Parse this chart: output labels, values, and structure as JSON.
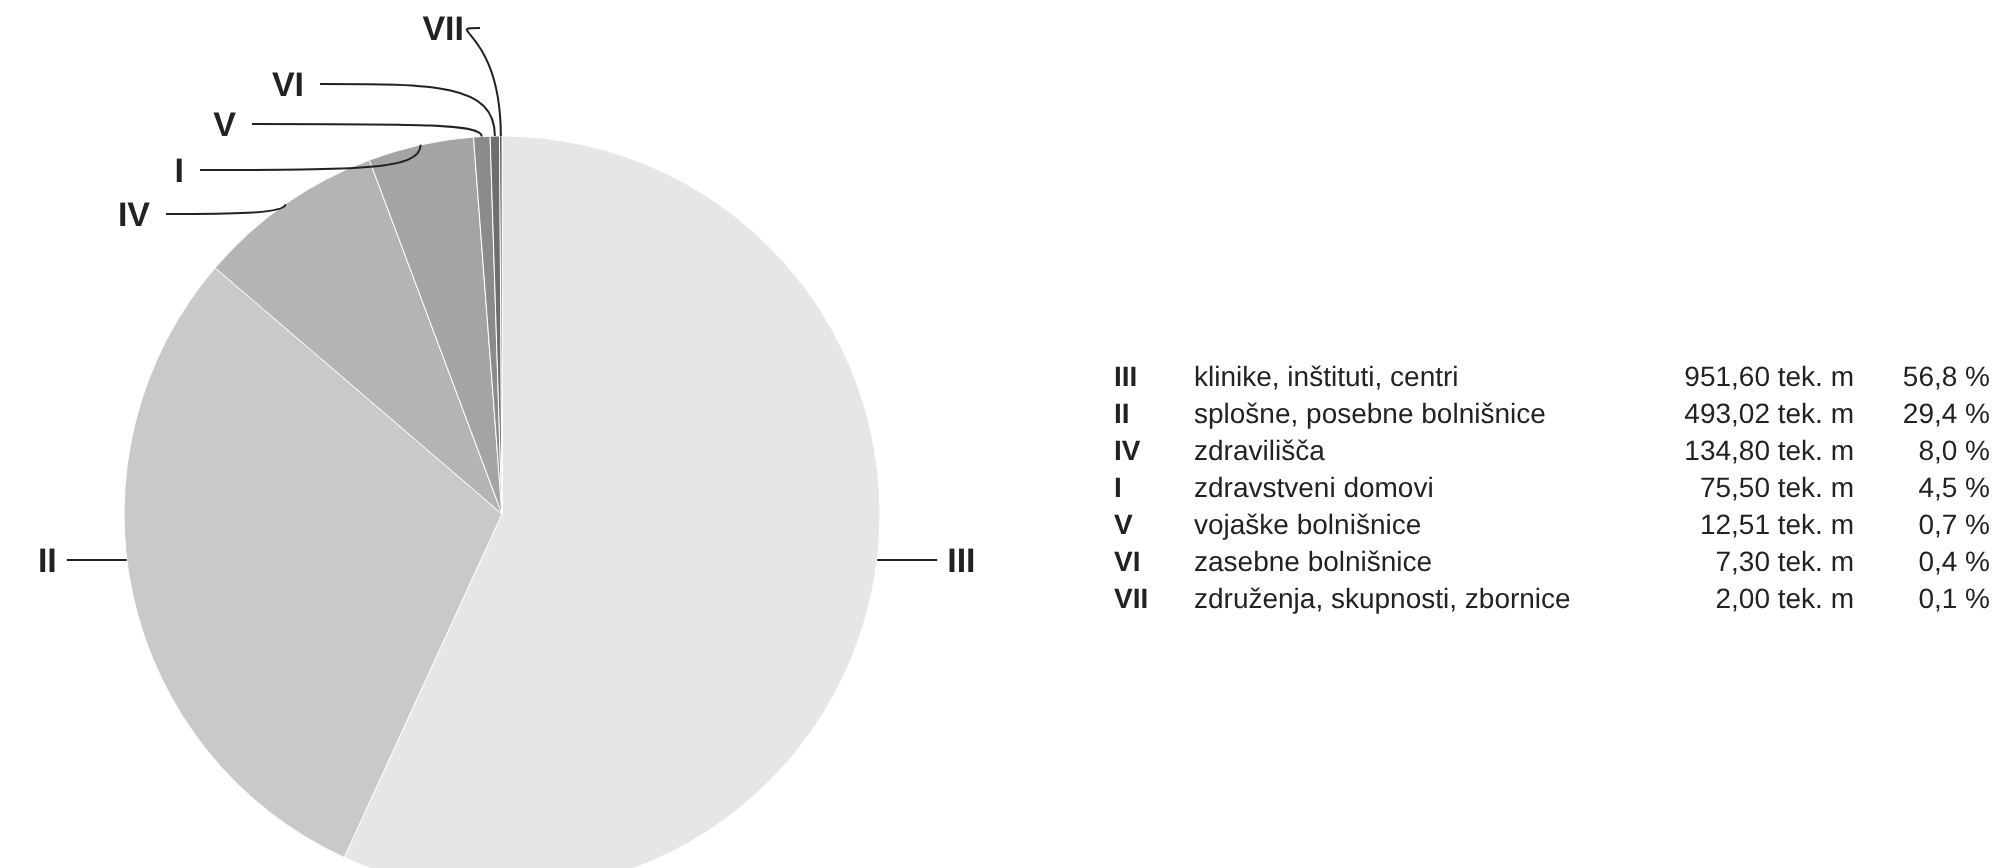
{
  "chart_data": {
    "type": "pie",
    "categories": [
      "III",
      "II",
      "IV",
      "I",
      "V",
      "VI",
      "VII"
    ],
    "values": [
      56.8,
      29.4,
      8.0,
      4.5,
      0.7,
      0.4,
      0.1
    ],
    "colors": [
      "#e6e6e7",
      "#c8c9cb",
      "#b3b4b6",
      "#a3a4a6",
      "#8a8b8d",
      "#6d6e70",
      "#454547"
    ],
    "annotations": [
      "klinike, inštituti, centri",
      "splošne, posebne bolnišnice",
      "zdravilišča",
      "zdravstveni domovi",
      "vojaške bolnišnice",
      "zasebne bolnišnice",
      "združenja, skupnosti, zbornice",
      "951,60 tek. m",
      "493,02 tek. m",
      "134,80 tek. m",
      "75,50 tek. m",
      "12,51 tek. m",
      "7,30 tek. m",
      "2,00 tek. m",
      "56,8 %",
      "29,4 %",
      "8,0 %",
      "4,5 %",
      "0,7 %",
      "0,4 %",
      "0,1 %"
    ]
  }
}
